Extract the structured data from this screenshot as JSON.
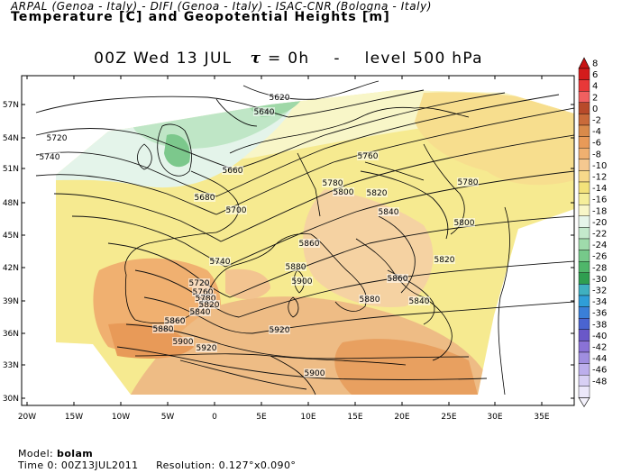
{
  "header": {
    "line1": "ARPAL (Genoa - Italy)  -  DIFI (Genoa - Italy)  -  ISAC-CNR (Bologna - Italy)",
    "line2": "Temperature [C] and Geopotential Heights [m]"
  },
  "plot_title": {
    "time": "00Z Wed 13 JUL",
    "tau_symbol": "τ",
    "tau_value": "= 0h",
    "dash": "-",
    "level": "level 500 hPa"
  },
  "axes": {
    "lat_ticks": [
      "57N",
      "54N",
      "51N",
      "48N",
      "45N",
      "42N",
      "39N",
      "36N",
      "33N",
      "30N"
    ],
    "lon_ticks": [
      "20W",
      "15W",
      "10W",
      "5W",
      "0",
      "5E",
      "10E",
      "15E",
      "20E",
      "25E",
      "30E",
      "35E"
    ]
  },
  "colorbar": {
    "labels": [
      "8",
      "6",
      "4",
      "2",
      "0",
      "-2",
      "-4",
      "-6",
      "-8",
      "-10",
      "-12",
      "-14",
      "-16",
      "-18",
      "-20",
      "-22",
      "-24",
      "-26",
      "-28",
      "-30",
      "-32",
      "-34",
      "-36",
      "-38",
      "-40",
      "-42",
      "-44",
      "-46",
      "-48"
    ],
    "colors": [
      "#d41c1c",
      "#e83838",
      "#f06060",
      "#b84a2a",
      "#c96a3a",
      "#d98a4a",
      "#e89a58",
      "#f0b070",
      "#f5c890",
      "#f7d98a",
      "#f3e27a",
      "#f5ee9a",
      "#f8f6c8",
      "#e6f5ea",
      "#c4e9cc",
      "#9fdbab",
      "#76c98a",
      "#4fb66a",
      "#2f9e50",
      "#3fb0c0",
      "#2f9ed8",
      "#3a7fd8",
      "#4a64d0",
      "#6a58c8",
      "#8a72d6",
      "#a08ee0",
      "#bcaeec",
      "#d8d0f4",
      "#ece8fa"
    ]
  },
  "contour_labels": [
    {
      "text": "5620"
    },
    {
      "text": "5640"
    },
    {
      "text": "5720"
    },
    {
      "text": "5740"
    },
    {
      "text": "5660"
    },
    {
      "text": "5680"
    },
    {
      "text": "5700"
    },
    {
      "text": "5760"
    },
    {
      "text": "5780"
    },
    {
      "text": "5800"
    },
    {
      "text": "5820"
    },
    {
      "text": "5840"
    },
    {
      "text": "5780"
    },
    {
      "text": "5800"
    },
    {
      "text": "5860"
    },
    {
      "text": "5740"
    },
    {
      "text": "5880"
    },
    {
      "text": "5900"
    },
    {
      "text": "5720"
    },
    {
      "text": "5760"
    },
    {
      "text": "5780"
    },
    {
      "text": "5820"
    },
    {
      "text": "5840"
    },
    {
      "text": "5860"
    },
    {
      "text": "5860"
    },
    {
      "text": "5880"
    },
    {
      "text": "5840"
    },
    {
      "text": "5820"
    },
    {
      "text": "5880"
    },
    {
      "text": "5900"
    },
    {
      "text": "5920"
    },
    {
      "text": "5920"
    },
    {
      "text": "5900"
    }
  ],
  "footer": {
    "model_label": "Model:",
    "model_value": "bolam",
    "time_label": "Time 0:",
    "time_value": "00Z13JUL2011",
    "res_label": "Resolution:",
    "res_value": "0.127°x0.090°"
  }
}
